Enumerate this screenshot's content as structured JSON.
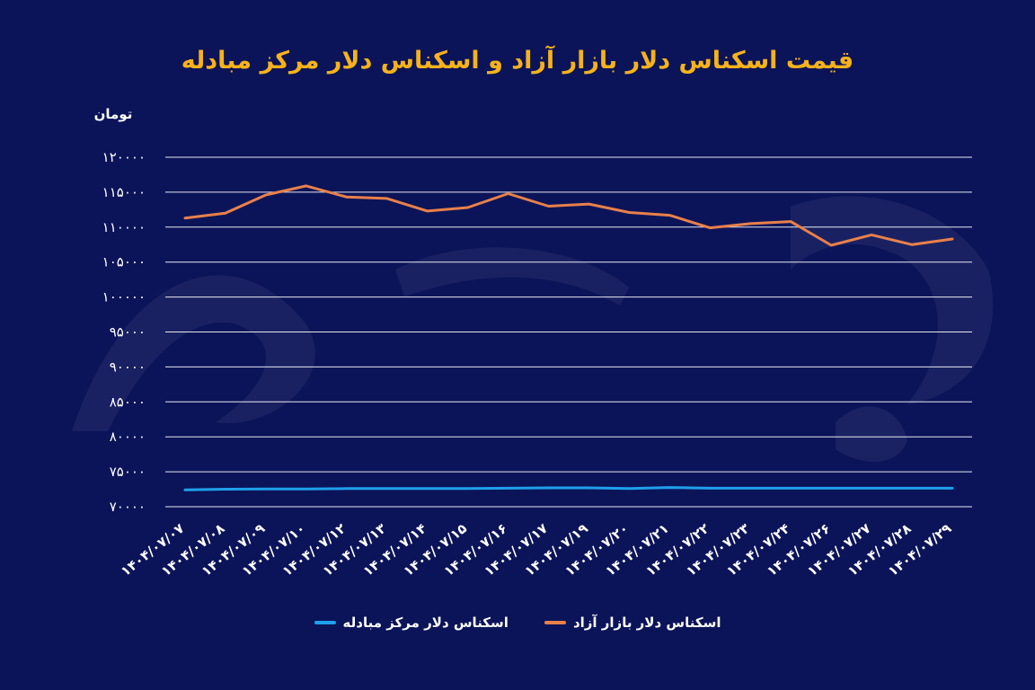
{
  "chart_data": {
    "type": "line",
    "title": "قیمت اسکناس دلار بازار آزاد و اسکناس دلار مرکز مبادله",
    "ylabel": "تومان",
    "xlabel": "",
    "ylim": [
      70000,
      120000
    ],
    "yticks": [
      70000,
      75000,
      80000,
      85000,
      90000,
      95000,
      100000,
      105000,
      110000,
      115000,
      120000
    ],
    "ytick_labels": [
      "۷۰۰۰۰",
      "۷۵۰۰۰",
      "۸۰۰۰۰",
      "۸۵۰۰۰",
      "۹۰۰۰۰",
      "۹۵۰۰۰",
      "۱۰۰۰۰۰",
      "۱۰۵۰۰۰",
      "۱۱۰۰۰۰",
      "۱۱۵۰۰۰",
      "۱۲۰۰۰۰"
    ],
    "categories": [
      "۱۴۰۴/۰۷/۰۷",
      "۱۴۰۴/۰۷/۰۸",
      "۱۴۰۴/۰۷/۰۹",
      "۱۴۰۴/۰۷/۱۰",
      "۱۴۰۴/۰۷/۱۲",
      "۱۴۰۴/۰۷/۱۳",
      "۱۴۰۴/۰۷/۱۴",
      "۱۴۰۴/۰۷/۱۵",
      "۱۴۰۴/۰۷/۱۶",
      "۱۴۰۴/۰۷/۱۷",
      "۱۴۰۴/۰۷/۱۹",
      "۱۴۰۴/۰۷/۲۰",
      "۱۴۰۴/۰۷/۲۱",
      "۱۴۰۴/۰۷/۲۲",
      "۱۴۰۴/۰۷/۲۳",
      "۱۴۰۴/۰۷/۲۴",
      "۱۴۰۴/۰۷/۲۶",
      "۱۴۰۴/۰۷/۲۷",
      "۱۴۰۴/۰۷/۲۸",
      "۱۴۰۴/۰۷/۲۹"
    ],
    "series": [
      {
        "name": "اسکناس دلار بازار آزاد",
        "color": "#e8804a",
        "values": [
          111300,
          112000,
          114600,
          115900,
          114300,
          114100,
          112300,
          112800,
          114800,
          113000,
          113300,
          112100,
          111700,
          109900,
          110500,
          110800,
          107400,
          108900,
          107500,
          108300
        ]
      },
      {
        "name": "اسکناس دلار مرکز مبادله",
        "color": "#1fa0ea",
        "values": [
          72400,
          72500,
          72550,
          72550,
          72600,
          72600,
          72600,
          72600,
          72650,
          72700,
          72700,
          72600,
          72750,
          72650,
          72650,
          72650,
          72650,
          72650,
          72650,
          72650
        ]
      }
    ],
    "grid": true,
    "legend_position": "bottom"
  }
}
